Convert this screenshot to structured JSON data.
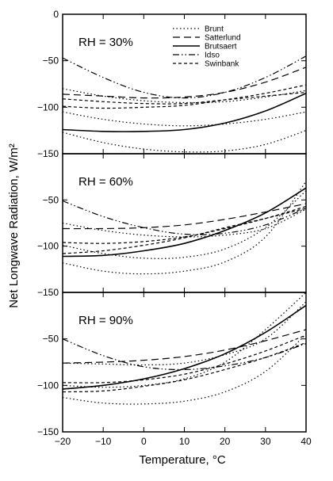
{
  "chart_data": {
    "type": "line",
    "xlabel": "Temperature, °C",
    "ylabel": "Net Longwave Radiation, W/m²",
    "xlim": [
      -20,
      40
    ],
    "ylim": [
      -150,
      0
    ],
    "x_ticks": [
      -20,
      -10,
      0,
      10,
      20,
      30,
      40
    ],
    "y_ticks": [
      0,
      -50,
      -100,
      -150
    ],
    "x": [
      -20,
      -10,
      0,
      10,
      20,
      30,
      40
    ],
    "legend": [
      {
        "name": "Brunt",
        "dash": "1.5,3"
      },
      {
        "name": "Satterlund",
        "dash": "9,5"
      },
      {
        "name": "Brutsaert",
        "dash": ""
      },
      {
        "name": "Idso",
        "dash": "8,3,1.5,3,1.5,3"
      },
      {
        "name": "Swinbank",
        "dash": "4,3"
      }
    ],
    "panels": [
      {
        "label": "RH = 30%",
        "series": [
          {
            "name": "Brunt",
            "values": [
              -80,
              -88,
              -93,
              -95,
              -94,
              -89,
              -82
            ]
          },
          {
            "name": "Brunt",
            "values": [
              -105,
              -113,
              -118,
              -120,
              -118,
              -113,
              -105
            ]
          },
          {
            "name": "Brunt",
            "values": [
              -127,
              -138,
              -145,
              -148,
              -147,
              -140,
              -125
            ]
          },
          {
            "name": "Satterlund",
            "values": [
              -86,
              -88,
              -90,
              -89,
              -84,
              -73,
              -57
            ]
          },
          {
            "name": "Brutsaert",
            "values": [
              -124,
              -126,
              -126,
              -124,
              -117,
              -104,
              -85
            ]
          },
          {
            "name": "Idso",
            "values": [
              -47,
              -68,
              -84,
              -90,
              -84,
              -68,
              -45
            ]
          },
          {
            "name": "Swinbank",
            "values": [
              -91,
              -94,
              -96,
              -96,
              -92,
              -88,
              -84
            ]
          },
          {
            "name": "Swinbank",
            "values": [
              -99,
              -101,
              -100,
              -98,
              -92,
              -85,
              -76
            ]
          }
        ]
      },
      {
        "label": "RH = 60%",
        "series": [
          {
            "name": "Brunt",
            "values": [
              -75,
              -83,
              -88,
              -90,
              -88,
              -81,
              -60
            ]
          },
          {
            "name": "Brunt",
            "values": [
              -99,
              -108,
              -113,
              -112,
              -103,
              -80,
              -40
            ]
          },
          {
            "name": "Brunt",
            "values": [
              -118,
              -127,
              -130,
              -127,
              -117,
              -90,
              -30
            ]
          },
          {
            "name": "Satterlund",
            "values": [
              -81,
              -81,
              -80,
              -77,
              -71,
              -63,
              -54
            ]
          },
          {
            "name": "Brutsaert",
            "values": [
              -111,
              -110,
              -105,
              -97,
              -83,
              -64,
              -37
            ]
          },
          {
            "name": "Idso",
            "values": [
              -51,
              -68,
              -80,
              -87,
              -86,
              -77,
              -59
            ]
          },
          {
            "name": "Swinbank",
            "values": [
              -96,
              -97,
              -95,
              -90,
              -81,
              -70,
              -57
            ]
          },
          {
            "name": "Swinbank",
            "values": [
              -108,
              -105,
              -99,
              -91,
              -80,
              -70,
              -59
            ]
          }
        ]
      },
      {
        "label": "RH = 90%",
        "series": [
          {
            "name": "Brunt",
            "values": [
              -76,
              -77,
              -78,
              -76,
              -67,
              -50,
              -10
            ]
          },
          {
            "name": "Brunt",
            "values": [
              -100,
              -102,
              -100,
              -93,
              -75,
              -40,
              0
            ]
          },
          {
            "name": "Brunt",
            "values": [
              -113,
              -119,
              -120,
              -117,
              -107,
              -85,
              -45
            ]
          },
          {
            "name": "Satterlund",
            "values": [
              -76,
              -75,
              -73,
              -69,
              -62,
              -52,
              -40
            ]
          },
          {
            "name": "Brutsaert",
            "values": [
              -104,
              -100,
              -93,
              -82,
              -66,
              -43,
              -14
            ]
          },
          {
            "name": "Idso",
            "values": [
              -50,
              -68,
              -80,
              -83,
              -79,
              -70,
              -55
            ]
          },
          {
            "name": "Swinbank",
            "values": [
              -97,
              -97,
              -94,
              -88,
              -77,
              -63,
              -46
            ]
          },
          {
            "name": "Swinbank",
            "values": [
              -107,
              -106,
              -101,
              -94,
              -83,
              -70,
              -54
            ]
          }
        ]
      }
    ]
  }
}
